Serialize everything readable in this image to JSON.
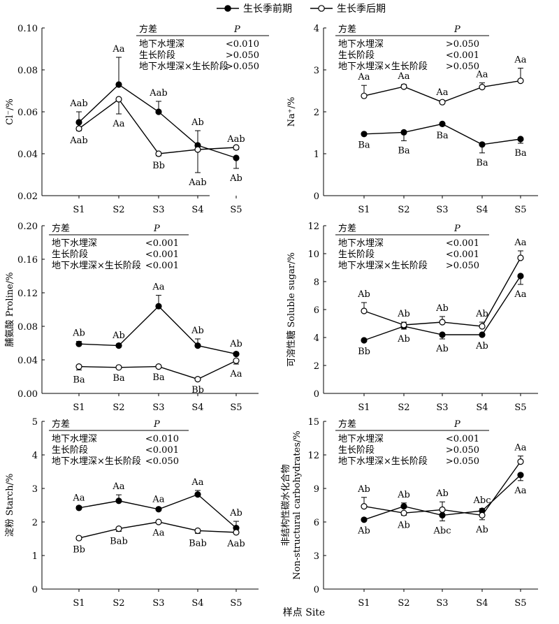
{
  "figure": {
    "legend": {
      "series_early": "生长季前期",
      "series_late": "生长季后期"
    },
    "xlabel_common": "样点 Site"
  },
  "chart_data": [
    {
      "type": "line",
      "ylabel": "Cl⁻/%",
      "categories": [
        "S1",
        "S2",
        "S3",
        "S4",
        "S5"
      ],
      "ylim": [
        0.02,
        0.1
      ],
      "yticks": [
        0.02,
        0.04,
        0.06,
        0.08,
        0.1
      ],
      "ytick_labels": [
        "0.02",
        "0.04",
        "0.06",
        "0.08",
        "0.10"
      ],
      "series": [
        {
          "name": "生长季前期",
          "marker": "filled",
          "values": [
            0.055,
            0.073,
            0.06,
            0.044,
            0.038
          ],
          "errors": [
            0.005,
            0.013,
            0.005,
            0.007,
            0.005
          ],
          "err_dir": [
            "up",
            "up",
            "up",
            "up",
            "down"
          ],
          "labels": [
            "Aab",
            "Aa",
            "Aab",
            "Ab",
            "Ab"
          ],
          "label_pos": [
            "above",
            "above",
            "above",
            "above",
            "below"
          ]
        },
        {
          "name": "生长季后期",
          "marker": "open",
          "values": [
            0.052,
            0.066,
            0.04,
            0.042,
            0.043
          ],
          "errors": [
            0.001,
            0.007,
            0.001,
            0.011,
            0.001
          ],
          "err_dir": [
            "down",
            "down",
            "down",
            "down",
            "down"
          ],
          "labels": [
            "Aab",
            "Aa",
            "Bb",
            "Aab",
            "Aab"
          ],
          "label_pos": [
            "below",
            "below",
            "below",
            "below",
            "above"
          ]
        }
      ],
      "anova": {
        "head_factor": "方差",
        "head_p": "P",
        "rows": [
          [
            "地下水埋深",
            "<0.010"
          ],
          [
            "生长阶段",
            ">0.050"
          ],
          [
            "地下水埋深×生长阶段",
            ">0.050"
          ]
        ]
      }
    },
    {
      "type": "line",
      "ylabel": "Na⁺/%",
      "categories": [
        "S1",
        "S2",
        "S3",
        "S4",
        "S5"
      ],
      "ylim": [
        0,
        4
      ],
      "yticks": [
        0,
        1,
        2,
        3,
        4
      ],
      "ytick_labels": [
        "0",
        "1",
        "2",
        "3",
        "4"
      ],
      "series": [
        {
          "name": "生长季前期",
          "marker": "filled",
          "values": [
            1.47,
            1.51,
            1.71,
            1.22,
            1.35
          ],
          "errors": [
            0.03,
            0.2,
            0.04,
            0.2,
            0.1
          ],
          "err_dir": [
            "down",
            "down",
            "down",
            "down",
            "down"
          ],
          "labels": [
            "Ba",
            "Ba",
            "Ba",
            "Ba",
            "Ba"
          ],
          "label_pos": [
            "below",
            "below",
            "below",
            "below",
            "below"
          ]
        },
        {
          "name": "生长季后期",
          "marker": "open",
          "values": [
            2.38,
            2.6,
            2.23,
            2.59,
            2.74
          ],
          "errors": [
            0.25,
            0.05,
            0.04,
            0.1,
            0.3
          ],
          "err_dir": [
            "up",
            "up",
            "up",
            "up",
            "up"
          ],
          "labels": [
            "Aa",
            "Aa",
            "Aa",
            "Aa",
            "Aa"
          ],
          "label_pos": [
            "above",
            "above",
            "above",
            "above",
            "above"
          ]
        }
      ],
      "anova": {
        "head_factor": "方差",
        "head_p": "P",
        "rows": [
          [
            "地下水埋深",
            ">0.050"
          ],
          [
            "生长阶段",
            "<0.001"
          ],
          [
            "地下水埋深×生长阶段",
            ">0.050"
          ]
        ]
      }
    },
    {
      "type": "line",
      "ylabel": "脯氨酸 Proline/%",
      "categories": [
        "S1",
        "S2",
        "S3",
        "S4",
        "S5"
      ],
      "ylim": [
        0,
        0.2
      ],
      "yticks": [
        0,
        0.04,
        0.08,
        0.12,
        0.16,
        0.2
      ],
      "ytick_labels": [
        "0.00",
        "0.04",
        "0.08",
        "0.12",
        "0.16",
        "0.20"
      ],
      "series": [
        {
          "name": "生长季前期",
          "marker": "filled",
          "values": [
            0.059,
            0.057,
            0.104,
            0.057,
            0.047
          ],
          "errors": [
            0.003,
            0.002,
            0.013,
            0.008,
            0.002
          ],
          "err_dir": [
            "up",
            "up",
            "up",
            "up",
            "up"
          ],
          "labels": [
            "Ab",
            "Ab",
            "Aa",
            "Ab",
            "Ab"
          ],
          "label_pos": [
            "above",
            "above",
            "above",
            "above",
            "above"
          ]
        },
        {
          "name": "生长季后期",
          "marker": "open",
          "values": [
            0.032,
            0.031,
            0.032,
            0.017,
            0.039
          ],
          "errors": [
            0.004,
            0.001,
            0.001,
            0.001,
            0.004
          ],
          "err_dir": [
            "down",
            "down",
            "down",
            "down",
            "down"
          ],
          "labels": [
            "Ba",
            "Ba",
            "Ba",
            "Bb",
            "Aa"
          ],
          "label_pos": [
            "below",
            "below",
            "below",
            "below",
            "below"
          ]
        }
      ],
      "anova": {
        "head_factor": "方差",
        "head_p": "P",
        "rows": [
          [
            "地下水埋深",
            "<0.001"
          ],
          [
            "生长阶段",
            "<0.001"
          ],
          [
            "地下水埋深×生长阶段",
            "<0.001"
          ]
        ]
      }
    },
    {
      "type": "line",
      "ylabel": "可溶性糖 Soluble sugar/%",
      "categories": [
        "S1",
        "S2",
        "S3",
        "S4",
        "S5"
      ],
      "ylim": [
        0,
        12
      ],
      "yticks": [
        0,
        2,
        4,
        6,
        8,
        10,
        12
      ],
      "ytick_labels": [
        "0",
        "2",
        "4",
        "6",
        "8",
        "10",
        "12"
      ],
      "series": [
        {
          "name": "生长季前期",
          "marker": "filled",
          "values": [
            3.8,
            4.8,
            4.2,
            4.2,
            8.4
          ],
          "errors": [
            0.1,
            0.2,
            0.3,
            0.1,
            0.6
          ],
          "err_dir": [
            "down",
            "down",
            "down",
            "down",
            "down"
          ],
          "labels": [
            "Bb",
            "Ab",
            "Ab",
            "Ab",
            "Aa"
          ],
          "label_pos": [
            "below",
            "below",
            "below",
            "below",
            "below"
          ]
        },
        {
          "name": "生长季后期",
          "marker": "open",
          "values": [
            5.9,
            4.9,
            5.1,
            4.8,
            9.7
          ],
          "errors": [
            0.6,
            0.2,
            0.4,
            0.3,
            0.5
          ],
          "err_dir": [
            "up",
            "up",
            "up",
            "up",
            "up"
          ],
          "labels": [
            "Ab",
            "Ab",
            "Ab",
            "Ab",
            "Aa"
          ],
          "label_pos": [
            "above",
            "above",
            "above",
            "above",
            "above"
          ]
        }
      ],
      "anova": {
        "head_factor": "方差",
        "head_p": "P",
        "rows": [
          [
            "地下水埋深",
            "<0.001"
          ],
          [
            "生长阶段",
            "<0.001"
          ],
          [
            "地下水埋深×生长阶段",
            ">0.050"
          ]
        ]
      }
    },
    {
      "type": "line",
      "ylabel": "淀粉 Starch/%",
      "categories": [
        "S1",
        "S2",
        "S3",
        "S4",
        "S5"
      ],
      "ylim": [
        0,
        5
      ],
      "yticks": [
        0,
        1,
        2,
        3,
        4,
        5
      ],
      "ytick_labels": [
        "0",
        "1",
        "2",
        "3",
        "4",
        "5"
      ],
      "series": [
        {
          "name": "生长季前期",
          "marker": "filled",
          "values": [
            2.42,
            2.63,
            2.38,
            2.82,
            1.82
          ],
          "errors": [
            0.05,
            0.18,
            0.05,
            0.12,
            0.2
          ],
          "err_dir": [
            "up",
            "up",
            "up",
            "up",
            "up"
          ],
          "labels": [
            "Aa",
            "Aa",
            "Aa",
            "Aa",
            "Ab"
          ],
          "label_pos": [
            "above",
            "above",
            "above",
            "above",
            "above"
          ]
        },
        {
          "name": "生长季后期",
          "marker": "open",
          "values": [
            1.52,
            1.8,
            2.0,
            1.74,
            1.69
          ],
          "errors": [
            0.05,
            0.08,
            0.03,
            0.08,
            0.04
          ],
          "err_dir": [
            "down",
            "down",
            "down",
            "down",
            "down"
          ],
          "labels": [
            "Bb",
            "Bab",
            "Aa",
            "Bab",
            "Aab"
          ],
          "label_pos": [
            "below",
            "below",
            "below",
            "below",
            "below"
          ]
        }
      ],
      "anova": {
        "head_factor": "方差",
        "head_p": "P",
        "rows": [
          [
            "地下水埋深",
            "<0.010"
          ],
          [
            "生长阶段",
            "<0.001"
          ],
          [
            "地下水埋深×生长阶段",
            "<0.050"
          ]
        ]
      }
    },
    {
      "type": "line",
      "ylabel": "非结构性碳水化合物 Non-structural carbohydrates/%",
      "ylabel_line1": "非结构性碳水化合物",
      "ylabel_line2": "Non-structural carbohydrates/%",
      "categories": [
        "S1",
        "S2",
        "S3",
        "S4",
        "S5"
      ],
      "ylim": [
        0,
        15
      ],
      "yticks": [
        0,
        3,
        6,
        9,
        12,
        15
      ],
      "ytick_labels": [
        "0",
        "3",
        "6",
        "9",
        "12",
        "15"
      ],
      "series": [
        {
          "name": "生长季前期",
          "marker": "filled",
          "values": [
            6.2,
            7.4,
            6.6,
            7.0,
            10.2
          ],
          "errors": [
            0.1,
            0.3,
            0.5,
            0.2,
            0.5
          ],
          "err_dir": [
            "down",
            "up",
            "down",
            "up",
            "down"
          ],
          "labels": [
            "Ab",
            "Ab",
            "Abc",
            "Abc",
            "Aa"
          ],
          "label_pos": [
            "below",
            "above",
            "below",
            "above",
            "below"
          ]
        },
        {
          "name": "生长季后期",
          "marker": "open",
          "values": [
            7.4,
            6.8,
            7.1,
            6.6,
            11.4
          ],
          "errors": [
            0.8,
            0.2,
            0.7,
            0.4,
            0.5
          ],
          "err_dir": [
            "up",
            "down",
            "up",
            "down",
            "up"
          ],
          "labels": [
            "Ab",
            "Ab",
            "Ab",
            "Ab",
            "Aa"
          ],
          "label_pos": [
            "above",
            "below",
            "above",
            "below",
            "above"
          ]
        }
      ],
      "anova": {
        "head_factor": "方差",
        "head_p": "P",
        "rows": [
          [
            "地下水埋深",
            "<0.001"
          ],
          [
            "生长阶段",
            ">0.050"
          ],
          [
            "地下水埋深×生长阶段",
            ">0.050"
          ]
        ]
      }
    }
  ]
}
